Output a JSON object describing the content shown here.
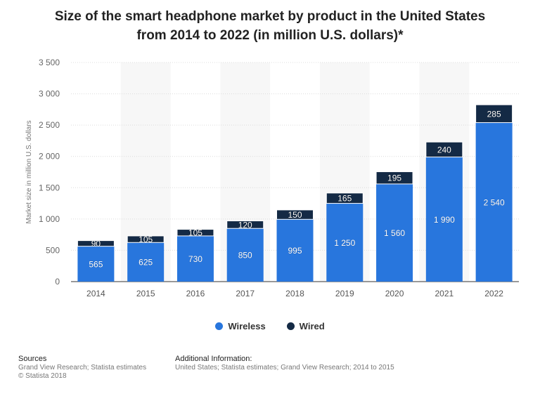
{
  "title_line1": "Size of the smart headphone market by product in the United States",
  "title_line2": "from 2014 to 2022 (in million U.S. dollars)*",
  "chart_data": {
    "type": "bar",
    "stacked": true,
    "categories": [
      "2014",
      "2015",
      "2016",
      "2017",
      "2018",
      "2019",
      "2020",
      "2021",
      "2022"
    ],
    "series": [
      {
        "name": "Wireless",
        "color": "#2876dd",
        "values": [
          565,
          625,
          730,
          850,
          995,
          1250,
          1560,
          1990,
          2540
        ],
        "labels": [
          "565",
          "625",
          "730",
          "850",
          "995",
          "1 250",
          "1 560",
          "1 990",
          "2 540"
        ]
      },
      {
        "name": "Wired",
        "color": "#142a45",
        "values": [
          90,
          105,
          105,
          120,
          150,
          165,
          195,
          240,
          285
        ],
        "labels": [
          "90",
          "105",
          "105",
          "120",
          "150",
          "165",
          "195",
          "240",
          "285"
        ]
      }
    ],
    "ylabel": "Market size in million U.S. dollars",
    "ylim": [
      0,
      3500
    ],
    "yticks": [
      0,
      500,
      1000,
      1500,
      2000,
      2500,
      3000,
      3500
    ],
    "ytick_labels": [
      "0",
      "500",
      "1 000",
      "1 500",
      "2 000",
      "2 500",
      "3 000",
      "3 500"
    ],
    "grid": true,
    "legend_position": "bottom"
  },
  "sources": {
    "heading": "Sources",
    "lines": [
      "Grand View Research; Statista estimates",
      "© Statista 2018"
    ]
  },
  "additional": {
    "heading": "Additional Information:",
    "lines": [
      "United States; Statista estimates; Grand View Research; 2014 to 2015"
    ]
  }
}
